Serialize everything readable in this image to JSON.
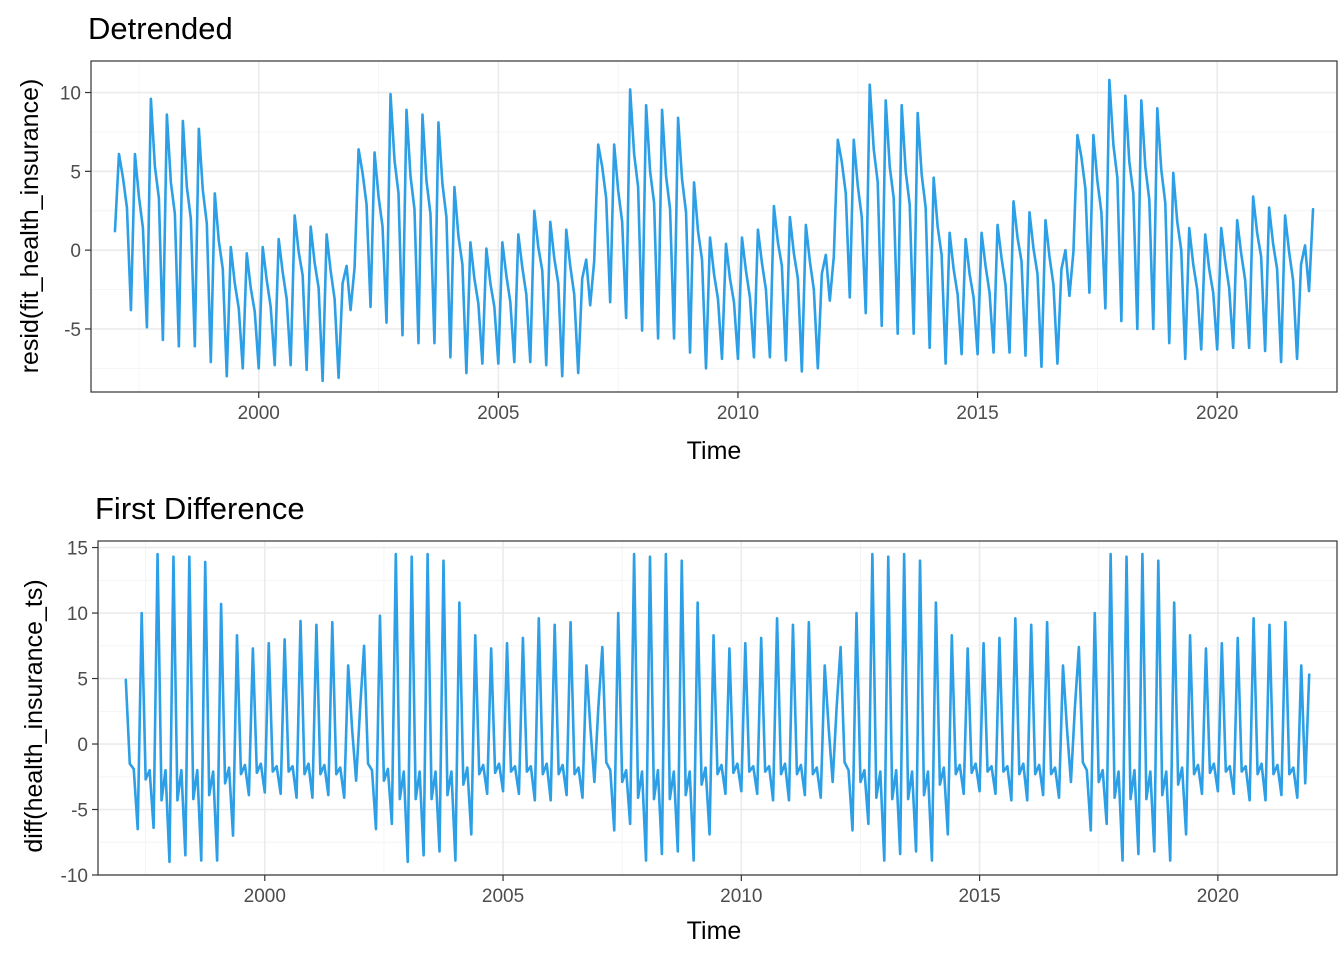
{
  "colors": {
    "series": "#2c9fe6"
  },
  "chart_data": [
    {
      "type": "line",
      "title": "Detrended",
      "xlabel": "Time",
      "ylabel": "resid(fit_health_insurance)",
      "xlim": [
        1996.5,
        2022.5
      ],
      "ylim": [
        -9,
        12
      ],
      "x_ticks": [
        2000,
        2005,
        2010,
        2015,
        2020
      ],
      "y_ticks": [
        -5,
        0,
        5,
        10
      ],
      "x_tick_labels": [
        "2000",
        "2005",
        "2010",
        "2015",
        "2020"
      ],
      "y_tick_labels": [
        "-5",
        "0",
        "5",
        "10"
      ],
      "grid": true,
      "x_start": 1997,
      "x_step": 0.08333333,
      "series": [
        {
          "values": [
            1.2,
            6.1,
            4.6,
            2.7,
            -3.8,
            6.1,
            3.4,
            1.4,
            -4.9,
            9.6,
            5.3,
            3.3,
            -5.7,
            8.6,
            4.3,
            2.3,
            -6.1,
            8.2,
            4.0,
            2.0,
            -6.1,
            7.7,
            3.8,
            1.7,
            -7.1,
            3.6,
            0.6,
            -1.2,
            -8.0,
            0.2,
            -2.1,
            -3.7,
            -7.5,
            -0.2,
            -2.4,
            -3.9,
            -7.5,
            0.2,
            -1.9,
            -3.6,
            -7.3,
            0.7,
            -1.4,
            -3.1,
            -7.3,
            2.2,
            -0.1,
            -1.6,
            -7.6,
            1.5,
            -0.8,
            -2.4,
            -8.3,
            1.0,
            -1.3,
            -3.1,
            -8.1,
            -2.1,
            -1.0,
            -3.8,
            -1.1,
            6.4,
            4.9,
            2.9,
            -3.6,
            6.2,
            3.4,
            1.5,
            -4.6,
            9.9,
            5.7,
            3.6,
            -5.4,
            8.9,
            4.7,
            2.6,
            -5.9,
            8.6,
            4.4,
            2.3,
            -5.9,
            8.1,
            4.2,
            2.1,
            -6.8,
            4.0,
            0.9,
            -0.9,
            -7.8,
            0.5,
            -1.8,
            -3.4,
            -7.2,
            0.1,
            -2.1,
            -3.6,
            -7.2,
            0.5,
            -1.6,
            -3.3,
            -7.1,
            1.0,
            -1.1,
            -2.8,
            -7.1,
            2.5,
            0.2,
            -1.3,
            -7.3,
            1.8,
            -0.5,
            -2.1,
            -8.0,
            1.3,
            -1.0,
            -2.8,
            -7.8,
            -1.8,
            -0.6,
            -3.5,
            -0.7,
            6.7,
            5.3,
            3.3,
            -3.3,
            6.7,
            3.8,
            1.8,
            -4.3,
            10.2,
            6.1,
            4.0,
            -5.1,
            9.2,
            5.0,
            3.0,
            -5.6,
            8.9,
            4.7,
            2.6,
            -5.6,
            8.4,
            4.5,
            2.4,
            -6.5,
            4.3,
            1.2,
            -0.6,
            -7.5,
            0.8,
            -1.5,
            -3.1,
            -6.9,
            0.4,
            -1.8,
            -3.3,
            -6.9,
            0.8,
            -1.3,
            -3.0,
            -6.8,
            1.3,
            -0.8,
            -2.5,
            -6.8,
            2.8,
            0.5,
            -1.0,
            -7.0,
            2.1,
            -0.2,
            -1.8,
            -7.7,
            1.6,
            -0.7,
            -2.5,
            -7.5,
            -1.5,
            -0.3,
            -3.2,
            -0.4,
            7.0,
            5.6,
            3.6,
            -3.0,
            7.0,
            4.1,
            2.1,
            -4.0,
            10.5,
            6.4,
            4.3,
            -4.8,
            9.5,
            5.3,
            3.3,
            -5.3,
            9.2,
            5.0,
            2.9,
            -5.3,
            8.7,
            4.8,
            2.7,
            -6.2,
            4.6,
            1.5,
            -0.3,
            -7.2,
            1.1,
            -1.2,
            -2.8,
            -6.6,
            0.7,
            -1.5,
            -3.0,
            -6.6,
            1.1,
            -1.0,
            -2.7,
            -6.5,
            1.6,
            -0.5,
            -2.2,
            -6.5,
            3.1,
            0.8,
            -0.7,
            -6.7,
            2.4,
            0.1,
            -1.5,
            -7.4,
            1.9,
            -0.4,
            -2.2,
            -7.2,
            -1.2,
            0.0,
            -2.9,
            -0.1,
            7.3,
            5.9,
            3.9,
            -2.7,
            7.3,
            4.4,
            2.4,
            -3.7,
            10.8,
            6.7,
            4.6,
            -4.5,
            9.8,
            5.6,
            3.6,
            -5.0,
            9.5,
            5.3,
            3.2,
            -5.0,
            9.0,
            5.1,
            3.0,
            -5.9,
            4.9,
            1.8,
            0.0,
            -6.9,
            1.4,
            -0.9,
            -2.5,
            -6.3,
            1.0,
            -1.2,
            -2.7,
            -6.3,
            1.4,
            -0.7,
            -2.4,
            -6.2,
            1.9,
            -0.2,
            -1.9,
            -6.2,
            3.4,
            1.1,
            -0.4,
            -6.4,
            2.7,
            0.4,
            -1.2,
            -7.1,
            2.2,
            -0.1,
            -1.9,
            -6.9,
            -0.9,
            0.3,
            -2.6,
            2.6
          ]
        }
      ]
    },
    {
      "type": "line",
      "title": "First Difference",
      "xlabel": "Time",
      "ylabel": "diff(health_insurance_ts)",
      "xlim": [
        1996.5,
        2022.5
      ],
      "ylim": [
        -10,
        15.5
      ],
      "x_ticks": [
        2000,
        2005,
        2010,
        2015,
        2020
      ],
      "y_ticks": [
        -10,
        -5,
        0,
        5,
        10,
        15
      ],
      "x_tick_labels": [
        "2000",
        "2005",
        "2010",
        "2015",
        "2020"
      ],
      "y_tick_labels": [
        "-10",
        "-5",
        "0",
        "5",
        "10",
        "15"
      ],
      "grid": true,
      "x_start": 1997.0833,
      "x_step": 0.08333333,
      "series": [
        {
          "values": [
            4.9,
            -1.5,
            -1.9,
            -6.5,
            10.0,
            -2.7,
            -2.0,
            -6.4,
            14.5,
            -4.3,
            -2.0,
            -9.0,
            14.3,
            -4.3,
            -2.0,
            -8.5,
            14.3,
            -4.2,
            -2.0,
            -8.9,
            13.9,
            -3.9,
            -2.1,
            -8.9,
            10.7,
            -3.0,
            -1.8,
            -7.0,
            8.3,
            -2.3,
            -1.6,
            -3.9,
            7.3,
            -2.2,
            -1.5,
            -3.7,
            7.7,
            -2.1,
            -1.7,
            -3.8,
            8.0,
            -2.1,
            -1.7,
            -4.1,
            9.4,
            -2.3,
            -1.5,
            -4.1,
            9.1,
            -2.3,
            -1.6,
            -3.9,
            9.3,
            -2.3,
            -1.8,
            -4.1,
            6.0,
            1.1,
            -2.8,
            2.7,
            7.5,
            -1.5,
            -2.0,
            -6.5,
            9.8,
            -2.8,
            -1.9,
            -6.1,
            14.5,
            -4.2,
            -2.1,
            -9.0,
            14.3,
            -4.2,
            -2.1,
            -8.5,
            14.5,
            -4.2,
            -2.1,
            -8.2,
            14.0,
            -3.9,
            -2.1,
            -8.9,
            10.8,
            -3.1,
            -1.8,
            -6.9,
            8.3,
            -2.3,
            -1.6,
            -3.8,
            7.3,
            -2.2,
            -1.5,
            -3.6,
            7.7,
            -2.1,
            -1.7,
            -3.8,
            8.1,
            -2.1,
            -1.7,
            -4.3,
            9.6,
            -2.3,
            -1.5,
            -4.3,
            9.1,
            -2.3,
            -1.6,
            -3.9,
            9.3,
            -2.3,
            -1.8,
            -4.1,
            6.0,
            1.2,
            -2.9,
            2.8,
            7.4,
            -1.4,
            -2.0,
            -6.6,
            10.0,
            -2.9,
            -2.0,
            -6.1,
            14.5,
            -4.1,
            -2.1,
            -8.9,
            14.3,
            -4.2,
            -2.0,
            -8.4,
            14.5,
            -4.2,
            -2.1,
            -8.2,
            14.0,
            -3.9,
            -2.1,
            -8.9,
            10.8,
            -3.1,
            -1.8,
            -6.9,
            8.3,
            -2.3,
            -1.6,
            -3.8,
            7.3,
            -2.2,
            -1.5,
            -3.6,
            7.7,
            -2.1,
            -1.7,
            -3.8,
            8.1,
            -2.1,
            -1.7,
            -4.3,
            9.6,
            -2.3,
            -1.5,
            -4.3,
            9.1,
            -2.3,
            -1.6,
            -3.9,
            9.3,
            -2.3,
            -1.8,
            -4.1,
            6.0,
            1.2,
            -2.9,
            2.8,
            7.4,
            -1.4,
            -2.0,
            -6.6,
            10.0,
            -2.9,
            -2.0,
            -6.1,
            14.5,
            -4.1,
            -2.1,
            -8.9,
            14.3,
            -4.2,
            -2.0,
            -8.4,
            14.5,
            -4.2,
            -2.1,
            -8.2,
            14.0,
            -3.9,
            -2.1,
            -8.9,
            10.8,
            -3.1,
            -1.8,
            -6.9,
            8.3,
            -2.3,
            -1.6,
            -3.8,
            7.3,
            -2.2,
            -1.5,
            -3.6,
            7.7,
            -2.1,
            -1.7,
            -3.8,
            8.1,
            -2.1,
            -1.7,
            -4.3,
            9.6,
            -2.3,
            -1.5,
            -4.3,
            9.1,
            -2.3,
            -1.6,
            -3.9,
            9.3,
            -2.3,
            -1.8,
            -4.1,
            6.0,
            1.2,
            -2.9,
            2.8,
            7.4,
            -1.4,
            -2.0,
            -6.6,
            10.0,
            -2.9,
            -2.0,
            -6.1,
            14.5,
            -4.1,
            -2.1,
            -8.9,
            14.3,
            -4.2,
            -2.0,
            -8.4,
            14.5,
            -4.2,
            -2.1,
            -8.2,
            14.0,
            -3.9,
            -2.1,
            -8.9,
            10.8,
            -3.1,
            -1.8,
            -6.9,
            8.3,
            -2.3,
            -1.6,
            -3.8,
            7.3,
            -2.2,
            -1.5,
            -3.6,
            7.7,
            -2.1,
            -1.7,
            -3.8,
            8.1,
            -2.1,
            -1.7,
            -4.3,
            9.6,
            -2.3,
            -1.5,
            -4.3,
            9.1,
            -2.3,
            -1.6,
            -3.9,
            9.3,
            -2.3,
            -1.8,
            -4.1,
            6.0,
            -3.0,
            5.3
          ]
        }
      ]
    }
  ]
}
